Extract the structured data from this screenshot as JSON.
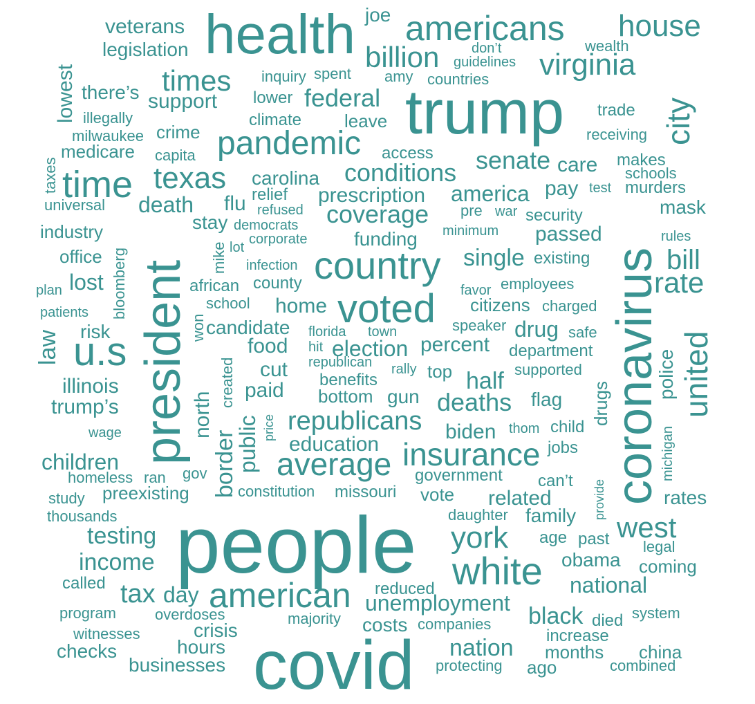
{
  "color": "#3a9391",
  "words": [
    "people",
    "covid",
    "trump",
    "health",
    "president",
    "coronavirus",
    "american",
    "americans",
    "country",
    "voted",
    "white",
    "pandemic",
    "time",
    "u.s",
    "insurance",
    "average",
    "house",
    "united",
    "virginia",
    "city",
    "texas",
    "york",
    "times",
    "billion",
    "republicans",
    "west",
    "rate",
    "bill",
    "federal",
    "conditions",
    "senate",
    "coverage",
    "prescription",
    "america",
    "deaths",
    "unemployment",
    "education",
    "testing",
    "income",
    "nation",
    "black",
    "national",
    "tax",
    "day",
    "legislation",
    "veterans",
    "joe",
    "support",
    "there’s",
    "lowest",
    "death",
    "flu",
    "carolina",
    "single",
    "passed",
    "funding",
    "care",
    "pay",
    "mask",
    "stay",
    "industry",
    "office",
    "lost",
    "home",
    "candidate",
    "food",
    "election",
    "percent",
    "drug",
    "department",
    "illinois",
    "trump’s",
    "children",
    "half",
    "biden",
    "flag",
    "law",
    "risk",
    "cut",
    "paid",
    "gun",
    "bottom",
    "benefits",
    "north",
    "border",
    "public",
    "police",
    "related",
    "family",
    "rates",
    "businesses",
    "hours",
    "checks",
    "crisis",
    "obama",
    "coming",
    "costs",
    "months",
    "china",
    "ago",
    "medicare",
    "crime",
    "climate",
    "leave",
    "access",
    "trade",
    "receiving",
    "makes",
    "schools",
    "murders",
    "security",
    "existing",
    "employees",
    "charged",
    "citizens",
    "speaker",
    "safe",
    "supported",
    "child",
    "jobs",
    "drugs",
    "michigan",
    "government",
    "vote",
    "missouri",
    "constitution",
    "preexisting",
    "homeless",
    "ran",
    "gov",
    "study",
    "thousands",
    "daughter",
    "age",
    "past",
    "legal",
    "called",
    "reduced",
    "program",
    "overdoses",
    "majority",
    "companies",
    "died",
    "system",
    "increase",
    "witnesses",
    "protecting",
    "combined",
    "lower",
    "inquiry",
    "spent",
    "amy",
    "don’t",
    "guidelines",
    "wealth",
    "countries",
    "illegally",
    "milwaukee",
    "capita",
    "taxes",
    "universal",
    "relief",
    "refused",
    "democrats",
    "corporate",
    "infection",
    "african",
    "county",
    "school",
    "won",
    "mike",
    "lot",
    "bloomberg",
    "plan",
    "patients",
    "florida",
    "town",
    "hit",
    "republican",
    "rally",
    "top",
    "created",
    "price",
    "minimum",
    "pre",
    "war",
    "test",
    "rules",
    "favor",
    "wage",
    "thom",
    "can’t",
    "provide"
  ]
}
